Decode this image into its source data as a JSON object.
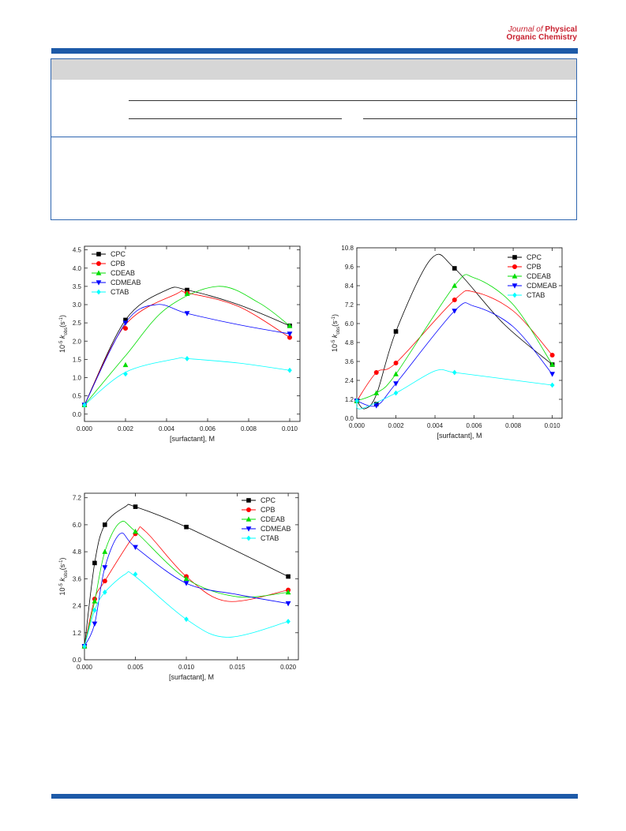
{
  "header": {
    "journal_line1_prefix": "Journal of ",
    "journal_line1_bold": "Physical",
    "journal_line2": "Organic Chemistry"
  },
  "colors": {
    "brand_blue": "#1d5aa8",
    "brand_red": "#c8202f",
    "CPC": "#000000",
    "CPB": "#ff0000",
    "CDEAB": "#00dd00",
    "CDMEAB": "#0000ff",
    "CTAB": "#00ffff"
  },
  "chart_data": [
    {
      "type": "scatter",
      "xlabel": "[surfactant], M",
      "ylabel_base": "10",
      "ylabel_exp": "-5",
      "ylabel_k": "k",
      "ylabel_sub": "obs",
      "ylabel_unit": "(s",
      "ylabel_unit_exp": "-1",
      "ylabel_unit_close": ")",
      "xlim": [
        0,
        0.0105
      ],
      "ylim": [
        -0.2,
        4.6
      ],
      "xticks": [
        "0.000",
        "0.002",
        "0.004",
        "0.006",
        "0.008",
        "0.010"
      ],
      "xtick_values": [
        0,
        0.002,
        0.004,
        0.006,
        0.008,
        0.01
      ],
      "yticks": [
        "0.0",
        "0.5",
        "1.0",
        "1.5",
        "2.0",
        "2.5",
        "3.0",
        "3.5",
        "4.0",
        "4.5"
      ],
      "ytick_values": [
        0,
        0.5,
        1.0,
        1.5,
        2.0,
        2.5,
        3.0,
        3.5,
        4.0,
        4.5
      ],
      "legend_position": "top-left",
      "series": [
        {
          "name": "CPC",
          "marker": "square",
          "x": [
            0,
            0.002,
            0.005,
            0.01
          ],
          "y": [
            0.25,
            2.58,
            3.4,
            2.42
          ],
          "curve_x": [
            0,
            0.002,
            0.004,
            0.005,
            0.0075,
            0.01
          ],
          "curve_y": [
            0.25,
            2.58,
            3.4,
            3.4,
            3.0,
            2.42
          ]
        },
        {
          "name": "CPB",
          "marker": "circle",
          "x": [
            0,
            0.002,
            0.005,
            0.01
          ],
          "y": [
            0.25,
            2.35,
            3.32,
            2.1
          ],
          "curve_x": [
            0,
            0.002,
            0.0045,
            0.005,
            0.0075,
            0.01
          ],
          "curve_y": [
            0.25,
            2.45,
            3.3,
            3.32,
            2.95,
            2.1
          ]
        },
        {
          "name": "CDEAB",
          "marker": "triangle-up",
          "x": [
            0,
            0.002,
            0.005,
            0.01
          ],
          "y": [
            0.25,
            1.35,
            3.3,
            2.42
          ],
          "curve_x": [
            0,
            0.002,
            0.004,
            0.0065,
            0.0085,
            0.01
          ],
          "curve_y": [
            0.25,
            1.6,
            2.9,
            3.5,
            3.05,
            2.42
          ]
        },
        {
          "name": "CDMEAB",
          "marker": "triangle-down",
          "x": [
            0,
            0.002,
            0.005,
            0.01
          ],
          "y": [
            0.25,
            2.5,
            2.76,
            2.2
          ],
          "curve_x": [
            0,
            0.002,
            0.0035,
            0.005,
            0.0075,
            0.01
          ],
          "curve_y": [
            0.25,
            2.5,
            3.0,
            2.76,
            2.45,
            2.2
          ]
        },
        {
          "name": "CTAB",
          "marker": "diamond",
          "x": [
            0,
            0.002,
            0.005,
            0.01
          ],
          "y": [
            0.25,
            1.1,
            1.52,
            1.2
          ],
          "curve_x": [
            0,
            0.002,
            0.0045,
            0.005,
            0.0075,
            0.01
          ],
          "curve_y": [
            0.25,
            1.15,
            1.52,
            1.52,
            1.4,
            1.2
          ]
        }
      ]
    },
    {
      "type": "scatter",
      "xlabel": "[surfactant], M",
      "ylabel_base": "10",
      "ylabel_exp": "-5",
      "ylabel_k": "k",
      "ylabel_sub": "obs",
      "ylabel_unit": "(s",
      "ylabel_unit_exp": "-1",
      "ylabel_unit_close": ")",
      "xlim": [
        0,
        0.0105
      ],
      "ylim": [
        0,
        10.8
      ],
      "xticks": [
        "0.000",
        "0.002",
        "0.004",
        "0.006",
        "0.008",
        "0.010"
      ],
      "xtick_values": [
        0,
        0.002,
        0.004,
        0.006,
        0.008,
        0.01
      ],
      "yticks": [
        "0.0",
        "1.2",
        "2.4",
        "3.6",
        "4.8",
        "6.0",
        "7.2",
        "8.4",
        "9.6",
        "10.8"
      ],
      "ytick_values": [
        0,
        1.2,
        2.4,
        3.6,
        4.8,
        6.0,
        7.2,
        8.4,
        9.6,
        10.8
      ],
      "legend_position": "top-right",
      "series": [
        {
          "name": "CPC",
          "marker": "square",
          "x": [
            0,
            0.001,
            0.002,
            0.005,
            0.01
          ],
          "y": [
            1.1,
            0.9,
            5.5,
            9.5,
            3.4
          ],
          "curve_x": [
            0,
            0.0004,
            0.001,
            0.002,
            0.0038,
            0.005,
            0.0075,
            0.01
          ],
          "curve_y": [
            1.1,
            0.6,
            1.5,
            5.5,
            10.1,
            9.5,
            6.0,
            3.4
          ]
        },
        {
          "name": "CPB",
          "marker": "circle",
          "x": [
            0,
            0.001,
            0.002,
            0.005,
            0.01
          ],
          "y": [
            1.1,
            2.9,
            3.5,
            7.5,
            4.0
          ],
          "curve_x": [
            0,
            0.001,
            0.002,
            0.005,
            0.006,
            0.008,
            0.01
          ],
          "curve_y": [
            1.1,
            2.9,
            3.5,
            7.5,
            8.0,
            6.8,
            4.0
          ]
        },
        {
          "name": "CDEAB",
          "marker": "triangle-up",
          "x": [
            0,
            0.001,
            0.002,
            0.005,
            0.01
          ],
          "y": [
            1.1,
            1.6,
            2.8,
            8.4,
            3.4
          ],
          "curve_x": [
            0,
            0.001,
            0.002,
            0.005,
            0.006,
            0.008,
            0.01
          ],
          "curve_y": [
            1.1,
            1.6,
            2.8,
            8.4,
            8.9,
            7.2,
            3.4
          ]
        },
        {
          "name": "CDMEAB",
          "marker": "triangle-down",
          "x": [
            0,
            0.001,
            0.002,
            0.005,
            0.01
          ],
          "y": [
            1.1,
            0.8,
            2.2,
            6.8,
            2.8
          ],
          "curve_x": [
            0,
            0.001,
            0.002,
            0.005,
            0.006,
            0.008,
            0.01
          ],
          "curve_y": [
            1.1,
            0.8,
            2.2,
            6.8,
            7.1,
            5.8,
            2.8
          ]
        },
        {
          "name": "CTAB",
          "marker": "diamond",
          "x": [
            0,
            0.002,
            0.005,
            0.01
          ],
          "y": [
            1.1,
            1.6,
            2.9,
            2.1
          ],
          "curve_x": [
            0,
            0.0002,
            0.002,
            0.004,
            0.005,
            0.0075,
            0.01
          ],
          "curve_y": [
            1.1,
            0.6,
            1.6,
            3.0,
            2.9,
            2.5,
            2.1
          ]
        }
      ]
    },
    {
      "type": "scatter",
      "xlabel": "[surfactant], M",
      "ylabel_base": "10",
      "ylabel_exp": "-5",
      "ylabel_k": "k",
      "ylabel_sub": "obs",
      "ylabel_unit": "(s",
      "ylabel_unit_exp": "-1",
      "ylabel_unit_close": ")",
      "xlim": [
        0,
        0.021
      ],
      "ylim": [
        0,
        7.4
      ],
      "xticks": [
        "0.000",
        "0.005",
        "0.010",
        "0.015",
        "0.020"
      ],
      "xtick_values": [
        0,
        0.005,
        0.01,
        0.015,
        0.02
      ],
      "yticks": [
        "0.0",
        "1.2",
        "2.4",
        "3.6",
        "4.8",
        "6.0",
        "7.2"
      ],
      "ytick_values": [
        0,
        1.2,
        2.4,
        3.6,
        4.8,
        6.0,
        7.2
      ],
      "legend_position": "top-right",
      "series": [
        {
          "name": "CPC",
          "marker": "square",
          "x": [
            0,
            0.001,
            0.002,
            0.005,
            0.01,
            0.02
          ],
          "y": [
            0.6,
            4.3,
            6.0,
            6.8,
            5.9,
            3.7
          ],
          "curve_x": [
            0,
            0.001,
            0.002,
            0.004,
            0.005,
            0.01,
            0.02
          ],
          "curve_y": [
            0.6,
            4.3,
            6.0,
            6.8,
            6.8,
            5.9,
            3.7
          ]
        },
        {
          "name": "CPB",
          "marker": "circle",
          "x": [
            0,
            0.001,
            0.002,
            0.005,
            0.01,
            0.02
          ],
          "y": [
            0.6,
            2.7,
            3.5,
            5.6,
            3.7,
            3.1
          ],
          "curve_x": [
            0,
            0.001,
            0.002,
            0.005,
            0.006,
            0.01,
            0.014,
            0.02
          ],
          "curve_y": [
            0.6,
            2.7,
            3.5,
            5.6,
            5.7,
            3.7,
            2.6,
            3.1
          ]
        },
        {
          "name": "CDEAB",
          "marker": "triangle-up",
          "x": [
            0,
            0.001,
            0.002,
            0.005,
            0.01,
            0.02
          ],
          "y": [
            0.6,
            2.6,
            4.8,
            5.7,
            3.6,
            3.0
          ],
          "curve_x": [
            0,
            0.001,
            0.002,
            0.0035,
            0.005,
            0.01,
            0.015,
            0.02
          ],
          "curve_y": [
            0.6,
            2.6,
            4.8,
            6.1,
            5.7,
            3.6,
            2.8,
            3.0
          ]
        },
        {
          "name": "CDMEAB",
          "marker": "triangle-down",
          "x": [
            0,
            0.001,
            0.002,
            0.005,
            0.01,
            0.02
          ],
          "y": [
            0.6,
            1.6,
            4.1,
            5.0,
            3.4,
            2.5
          ],
          "curve_x": [
            0,
            0.001,
            0.002,
            0.0035,
            0.005,
            0.01,
            0.015,
            0.02
          ],
          "curve_y": [
            0.6,
            1.6,
            4.1,
            5.6,
            5.0,
            3.4,
            2.9,
            2.5
          ]
        },
        {
          "name": "CTAB",
          "marker": "diamond",
          "x": [
            0,
            0.001,
            0.002,
            0.005,
            0.01,
            0.02
          ],
          "y": [
            0.6,
            2.2,
            3.0,
            3.8,
            1.8,
            1.7
          ],
          "curve_x": [
            0,
            0.001,
            0.002,
            0.004,
            0.005,
            0.01,
            0.014,
            0.02
          ],
          "curve_y": [
            0.6,
            2.2,
            3.0,
            3.8,
            3.7,
            1.8,
            1.0,
            1.7
          ]
        }
      ]
    }
  ]
}
